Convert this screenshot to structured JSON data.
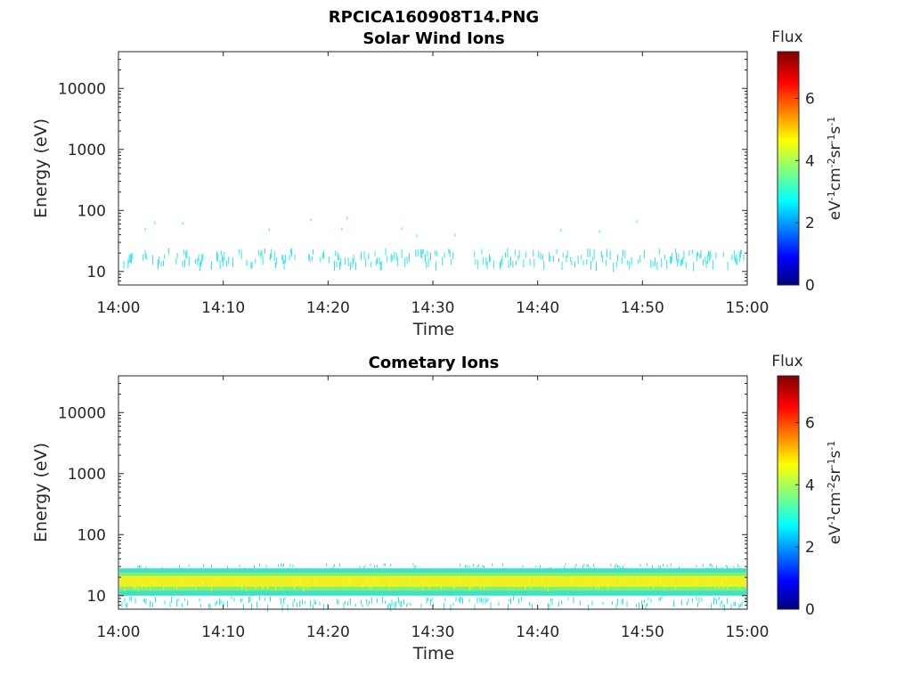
{
  "figure_title": "RPCICA160908T14.PNG",
  "colors": {
    "solar_wind_speckle": "#33e5e5",
    "band_core": "#f0f020",
    "band_mid": "#7ef07a",
    "band_edge": "#3de0c8"
  },
  "chart_data": [
    {
      "type": "heatmap",
      "title": "Solar Wind Ions",
      "xlabel": "Time",
      "ylabel": "Energy (eV)",
      "x_ticks": [
        "14:00",
        "14:10",
        "14:20",
        "14:30",
        "14:40",
        "14:50",
        "15:00"
      ],
      "xlim": [
        "14:00",
        "15:00"
      ],
      "y_ticks": [
        "10",
        "100",
        "1000",
        "10000"
      ],
      "y_scale": "log",
      "ylim": [
        6,
        40000
      ],
      "colorbar": {
        "title": "Flux",
        "label": "eV⁻¹cm⁻²sr⁻¹s⁻¹",
        "ticks": [
          "0",
          "2",
          "4",
          "6"
        ],
        "range": [
          0,
          7.5
        ],
        "colormap": "jet"
      },
      "features": [
        {
          "description_energy_eV": [
            14,
            24
          ],
          "flux_level": 2.8,
          "coverage": "sparse"
        }
      ],
      "grid": false
    },
    {
      "type": "heatmap",
      "title": "Cometary Ions",
      "xlabel": "Time",
      "ylabel": "Energy (eV)",
      "x_ticks": [
        "14:00",
        "14:10",
        "14:20",
        "14:30",
        "14:40",
        "14:50",
        "15:00"
      ],
      "xlim": [
        "14:00",
        "15:00"
      ],
      "y_ticks": [
        "10",
        "100",
        "1000",
        "10000"
      ],
      "y_scale": "log",
      "ylim": [
        6,
        40000
      ],
      "colorbar": {
        "title": "Flux",
        "label": "eV⁻¹cm⁻²sr⁻¹s⁻¹",
        "ticks": [
          "0",
          "2",
          "4",
          "6"
        ],
        "range": [
          0,
          7.5
        ],
        "colormap": "jet"
      },
      "features": [
        {
          "description_energy_eV": [
            10,
            28
          ],
          "flux_level": 4.5,
          "coverage": "continuous"
        }
      ],
      "grid": false
    }
  ]
}
